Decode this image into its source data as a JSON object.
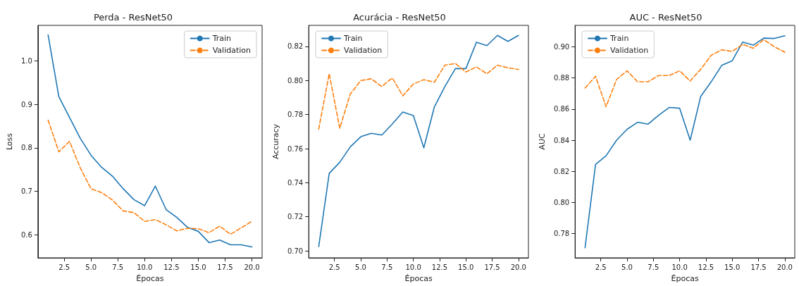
{
  "chart_data": [
    {
      "type": "line",
      "title": "Perda - ResNet50",
      "xlabel": "Épocas",
      "ylabel": "Loss",
      "x": [
        1,
        2,
        3,
        4,
        5,
        6,
        7,
        8,
        9,
        10,
        11,
        12,
        13,
        14,
        15,
        16,
        17,
        18,
        19,
        20
      ],
      "series": [
        {
          "name": "Train",
          "color": "#1f77b4",
          "line_style": "solid",
          "values": [
            1.06,
            0.918,
            0.87,
            0.822,
            0.783,
            0.755,
            0.735,
            0.706,
            0.681,
            0.667,
            0.712,
            0.658,
            0.64,
            0.617,
            0.608,
            0.582,
            0.588,
            0.577,
            0.577,
            0.572
          ]
        },
        {
          "name": "Validation",
          "color": "#ff7f0e",
          "line_style": "dashed",
          "values": [
            0.864,
            0.791,
            0.815,
            0.754,
            0.706,
            0.697,
            0.68,
            0.655,
            0.651,
            0.631,
            0.635,
            0.623,
            0.609,
            0.615,
            0.614,
            0.605,
            0.62,
            0.601,
            0.616,
            0.631
          ]
        }
      ],
      "xlim": [
        0.05,
        20.95
      ],
      "xticks": [
        2.5,
        {
          "value": 5,
          "label": "5.0"
        },
        7.5,
        {
          "value": 10,
          "label": "10.0"
        },
        12.5,
        {
          "value": 15,
          "label": "15.0"
        },
        17.5,
        {
          "value": 20,
          "label": "20.0"
        }
      ],
      "ylim": [
        0.547,
        1.082
      ],
      "yticks": [
        0.6,
        0.7,
        0.8,
        0.9,
        {
          "value": 1,
          "label": "1.0"
        }
      ],
      "grid": false,
      "legend": "top right",
      "marker": "none"
    },
    {
      "type": "line",
      "title": "Acurácia - ResNet50",
      "xlabel": "Épocas",
      "ylabel": "Accuracy",
      "x": [
        1,
        2,
        3,
        4,
        5,
        6,
        7,
        8,
        9,
        10,
        11,
        12,
        13,
        14,
        15,
        16,
        17,
        18,
        19,
        20
      ],
      "series": [
        {
          "name": "Train",
          "color": "#1f77b4",
          "line_style": "solid",
          "values": [
            0.7025,
            0.7455,
            0.752,
            0.761,
            0.767,
            0.769,
            0.768,
            0.7745,
            0.7815,
            0.7795,
            0.7605,
            0.7845,
            0.7965,
            0.807,
            0.807,
            0.8225,
            0.8205,
            0.8265,
            0.823,
            0.8265
          ]
        },
        {
          "name": "Validation",
          "color": "#ff7f0e",
          "line_style": "dashed",
          "values": [
            0.7715,
            0.804,
            0.772,
            0.792,
            0.8,
            0.801,
            0.7965,
            0.8015,
            0.791,
            0.798,
            0.8005,
            0.799,
            0.809,
            0.81,
            0.805,
            0.808,
            0.804,
            0.809,
            0.8075,
            0.8065
          ]
        }
      ],
      "xlim": [
        0.05,
        20.95
      ],
      "xticks": [
        2.5,
        {
          "value": 5,
          "label": "5.0"
        },
        7.5,
        {
          "value": 10,
          "label": "10.0"
        },
        12.5,
        {
          "value": 15,
          "label": "15.0"
        },
        17.5,
        {
          "value": 20,
          "label": "20.0"
        }
      ],
      "ylim": [
        0.6959,
        0.8324
      ],
      "yticks": [
        {
          "value": 0.7,
          "label": "0.70"
        },
        0.72,
        0.74,
        0.76,
        0.78,
        {
          "value": 0.8,
          "label": "0.80"
        },
        0.82
      ],
      "grid": false,
      "legend": "top left",
      "marker": "none"
    },
    {
      "type": "line",
      "title": "AUC - ResNet50",
      "xlabel": "Épocas",
      "ylabel": "AUC",
      "x": [
        1,
        2,
        3,
        4,
        5,
        6,
        7,
        8,
        9,
        10,
        11,
        12,
        13,
        14,
        15,
        16,
        17,
        18,
        19,
        20
      ],
      "series": [
        {
          "name": "Train",
          "color": "#1f77b4",
          "line_style": "solid",
          "values": [
            0.771,
            0.8245,
            0.83,
            0.84,
            0.847,
            0.8515,
            0.8503,
            0.856,
            0.861,
            0.8605,
            0.84,
            0.868,
            0.8775,
            0.888,
            0.891,
            0.903,
            0.901,
            0.9055,
            0.9053,
            0.907
          ]
        },
        {
          "name": "Validation",
          "color": "#ff7f0e",
          "line_style": "dashed",
          "values": [
            0.8735,
            0.881,
            0.8615,
            0.879,
            0.8845,
            0.8775,
            0.8775,
            0.8815,
            0.8815,
            0.8845,
            0.878,
            0.8855,
            0.8945,
            0.898,
            0.897,
            0.9015,
            0.899,
            0.9045,
            0.9,
            0.8965
          ]
        }
      ],
      "xlim": [
        0.05,
        20.95
      ],
      "xticks": [
        2.5,
        {
          "value": 5,
          "label": "5.0"
        },
        7.5,
        {
          "value": 10,
          "label": "10.0"
        },
        12.5,
        {
          "value": 15,
          "label": "15.0"
        },
        17.5,
        {
          "value": 20,
          "label": "20.0"
        }
      ],
      "ylim": [
        0.7645,
        0.9137
      ],
      "yticks": [
        0.78,
        {
          "value": 0.8,
          "label": "0.80"
        },
        0.82,
        0.84,
        0.86,
        0.88,
        {
          "value": 0.9,
          "label": "0.90"
        }
      ],
      "grid": false,
      "legend": "top left",
      "marker": "none"
    }
  ]
}
